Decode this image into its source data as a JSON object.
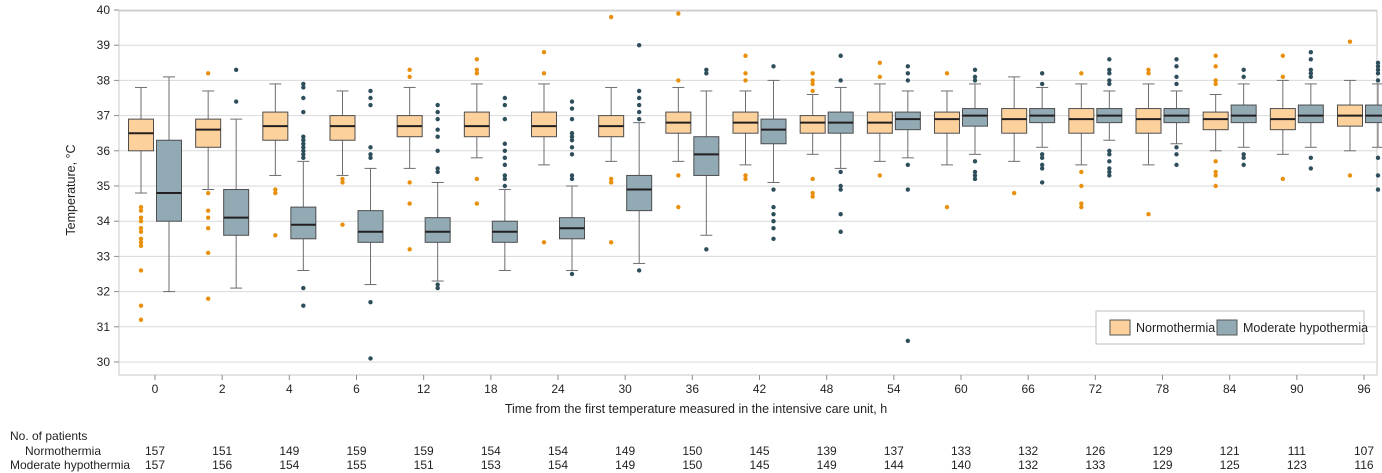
{
  "chart_data": {
    "type": "boxplot",
    "xlabel": "Time from the first temperature measured in the intensive care unit, h",
    "ylabel": "Temperature, °C",
    "ylim": [
      30,
      40
    ],
    "yticks": [
      30,
      31,
      32,
      33,
      34,
      35,
      36,
      37,
      38,
      39,
      40
    ],
    "grid": true,
    "legend_position": "bottom-right",
    "categories": [
      "0",
      "2",
      "4",
      "6",
      "12",
      "18",
      "24",
      "30",
      "36",
      "42",
      "48",
      "54",
      "60",
      "66",
      "72",
      "78",
      "84",
      "90",
      "96"
    ],
    "series": [
      {
        "name": "Normothermia",
        "color": "#fdd19b",
        "outlier_color": "#e8900c",
        "boxes": [
          {
            "whislo": 34.8,
            "q1": 36.0,
            "med": 36.5,
            "q3": 36.9,
            "whishi": 37.8,
            "fliers": [
              34.4,
              34.3,
              34.1,
              34.0,
              33.8,
              33.7,
              33.5,
              33.4,
              33.3,
              32.6,
              31.6,
              31.2
            ]
          },
          {
            "whislo": 34.9,
            "q1": 36.1,
            "med": 36.6,
            "q3": 36.9,
            "whishi": 37.7,
            "fliers": [
              38.2,
              34.8,
              34.3,
              34.1,
              33.8,
              33.1,
              31.8
            ]
          },
          {
            "whislo": 35.3,
            "q1": 36.3,
            "med": 36.7,
            "q3": 37.1,
            "whishi": 37.9,
            "fliers": [
              34.9,
              34.8,
              33.6
            ]
          },
          {
            "whislo": 35.3,
            "q1": 36.3,
            "med": 36.7,
            "q3": 37.0,
            "whishi": 37.7,
            "fliers": [
              35.2,
              35.1,
              33.9
            ]
          },
          {
            "whislo": 35.5,
            "q1": 36.4,
            "med": 36.7,
            "q3": 37.0,
            "whishi": 37.8,
            "fliers": [
              38.3,
              38.1,
              35.1,
              34.5,
              33.2
            ]
          },
          {
            "whislo": 35.8,
            "q1": 36.4,
            "med": 36.7,
            "q3": 37.1,
            "whishi": 37.9,
            "fliers": [
              38.6,
              38.3,
              38.2,
              35.2,
              34.5
            ]
          },
          {
            "whislo": 35.6,
            "q1": 36.4,
            "med": 36.7,
            "q3": 37.1,
            "whishi": 37.9,
            "fliers": [
              38.8,
              38.2,
              33.4
            ]
          },
          {
            "whislo": 35.7,
            "q1": 36.4,
            "med": 36.7,
            "q3": 37.0,
            "whishi": 37.8,
            "fliers": [
              39.8,
              35.2,
              35.1,
              33.4
            ]
          },
          {
            "whislo": 35.7,
            "q1": 36.5,
            "med": 36.8,
            "q3": 37.1,
            "whishi": 37.8,
            "fliers": [
              39.9,
              38.0,
              35.3,
              34.4
            ]
          },
          {
            "whislo": 35.6,
            "q1": 36.5,
            "med": 36.8,
            "q3": 37.1,
            "whishi": 37.7,
            "fliers": [
              38.7,
              38.2,
              38.0,
              35.3,
              35.2
            ]
          },
          {
            "whislo": 35.9,
            "q1": 36.5,
            "med": 36.8,
            "q3": 37.0,
            "whishi": 37.6,
            "fliers": [
              38.2,
              38.0,
              37.9,
              37.7,
              35.2,
              34.8,
              34.7
            ]
          },
          {
            "whislo": 35.7,
            "q1": 36.5,
            "med": 36.8,
            "q3": 37.1,
            "whishi": 37.9,
            "fliers": [
              38.5,
              38.1,
              35.3
            ]
          },
          {
            "whislo": 35.6,
            "q1": 36.5,
            "med": 36.9,
            "q3": 37.1,
            "whishi": 37.7,
            "fliers": [
              38.2,
              34.4
            ]
          },
          {
            "whislo": 35.7,
            "q1": 36.5,
            "med": 36.9,
            "q3": 37.2,
            "whishi": 38.1,
            "fliers": [
              34.8
            ]
          },
          {
            "whislo": 35.6,
            "q1": 36.5,
            "med": 36.9,
            "q3": 37.2,
            "whishi": 37.9,
            "fliers": [
              38.2,
              35.4,
              35.0,
              34.5,
              34.4
            ]
          },
          {
            "whislo": 35.6,
            "q1": 36.5,
            "med": 36.9,
            "q3": 37.2,
            "whishi": 37.9,
            "fliers": [
              38.3,
              38.2,
              34.2
            ]
          },
          {
            "whislo": 36.0,
            "q1": 36.6,
            "med": 36.9,
            "q3": 37.1,
            "whishi": 37.6,
            "fliers": [
              38.7,
              38.4,
              38.0,
              37.9,
              35.7,
              35.4,
              35.3,
              35.0
            ]
          },
          {
            "whislo": 35.9,
            "q1": 36.6,
            "med": 36.9,
            "q3": 37.2,
            "whishi": 38.0,
            "fliers": [
              38.7,
              38.1,
              35.2
            ]
          },
          {
            "whislo": 36.0,
            "q1": 36.7,
            "med": 37.0,
            "q3": 37.3,
            "whishi": 38.0,
            "fliers": [
              39.1,
              35.3
            ]
          }
        ]
      },
      {
        "name": "Moderate hypothermia",
        "color": "#91aab4",
        "outlier_color": "#2e4e5b",
        "boxes": [
          {
            "whislo": 32.0,
            "q1": 34.0,
            "med": 34.8,
            "q3": 36.3,
            "whishi": 38.1,
            "fliers": []
          },
          {
            "whislo": 32.1,
            "q1": 33.6,
            "med": 34.1,
            "q3": 34.9,
            "whishi": 36.9,
            "fliers": [
              38.3,
              37.4
            ]
          },
          {
            "whislo": 32.6,
            "q1": 33.5,
            "med": 33.9,
            "q3": 34.4,
            "whishi": 35.7,
            "fliers": [
              37.9,
              37.8,
              37.5,
              37.1,
              36.4,
              36.3,
              36.2,
              36.1,
              36.0,
              35.9,
              35.8,
              32.1,
              31.6
            ]
          },
          {
            "whislo": 32.2,
            "q1": 33.4,
            "med": 33.7,
            "q3": 34.3,
            "whishi": 35.5,
            "fliers": [
              37.7,
              37.5,
              37.3,
              36.1,
              35.9,
              35.8,
              31.7,
              30.1
            ]
          },
          {
            "whislo": 32.3,
            "q1": 33.4,
            "med": 33.7,
            "q3": 34.1,
            "whishi": 35.1,
            "fliers": [
              37.3,
              37.1,
              36.9,
              36.6,
              36.4,
              36.0,
              35.5,
              35.4,
              32.2,
              32.1
            ]
          },
          {
            "whislo": 32.6,
            "q1": 33.4,
            "med": 33.7,
            "q3": 34.0,
            "whishi": 34.9,
            "fliers": [
              37.5,
              37.3,
              36.9,
              36.2,
              36.0,
              35.8,
              35.6,
              35.3,
              35.2,
              35.0
            ]
          },
          {
            "whislo": 32.6,
            "q1": 33.5,
            "med": 33.8,
            "q3": 34.1,
            "whishi": 35.0,
            "fliers": [
              37.4,
              37.2,
              36.9,
              36.5,
              36.4,
              36.3,
              36.1,
              35.9,
              35.3,
              35.2,
              32.5
            ]
          },
          {
            "whislo": 32.8,
            "q1": 34.3,
            "med": 34.9,
            "q3": 35.3,
            "whishi": 36.8,
            "fliers": [
              39.0,
              37.7,
              37.5,
              37.3,
              37.1,
              36.9,
              32.6
            ]
          },
          {
            "whislo": 33.6,
            "q1": 35.3,
            "med": 35.9,
            "q3": 36.4,
            "whishi": 37.7,
            "fliers": [
              38.3,
              38.2,
              33.2
            ]
          },
          {
            "whislo": 35.1,
            "q1": 36.2,
            "med": 36.6,
            "q3": 36.9,
            "whishi": 38.0,
            "fliers": [
              38.4,
              34.9,
              34.4,
              34.2,
              34.0,
              33.8,
              33.5
            ]
          },
          {
            "whislo": 35.5,
            "q1": 36.5,
            "med": 36.8,
            "q3": 37.1,
            "whishi": 37.8,
            "fliers": [
              38.7,
              38.0,
              35.4,
              35.0,
              34.9,
              34.2,
              33.7
            ]
          },
          {
            "whislo": 35.8,
            "q1": 36.6,
            "med": 36.9,
            "q3": 37.1,
            "whishi": 37.7,
            "fliers": [
              38.4,
              38.2,
              38.0,
              35.6,
              34.9,
              30.6
            ]
          },
          {
            "whislo": 35.9,
            "q1": 36.7,
            "med": 37.0,
            "q3": 37.2,
            "whishi": 37.9,
            "fliers": [
              38.3,
              38.1,
              38.0,
              35.7,
              35.4,
              35.3,
              35.2
            ]
          },
          {
            "whislo": 36.1,
            "q1": 36.8,
            "med": 37.0,
            "q3": 37.2,
            "whishi": 37.8,
            "fliers": [
              38.2,
              37.9,
              35.9,
              35.8,
              35.6,
              35.5,
              35.1
            ]
          },
          {
            "whislo": 36.3,
            "q1": 36.8,
            "med": 37.0,
            "q3": 37.2,
            "whishi": 37.7,
            "fliers": [
              38.6,
              38.3,
              38.2,
              38.0,
              37.9,
              36.0,
              35.9,
              35.7,
              35.5,
              35.4,
              35.3
            ]
          },
          {
            "whislo": 36.2,
            "q1": 36.8,
            "med": 37.0,
            "q3": 37.2,
            "whishi": 37.7,
            "fliers": [
              38.6,
              38.4,
              38.1,
              37.9,
              36.1,
              35.9,
              35.6
            ]
          },
          {
            "whislo": 36.1,
            "q1": 36.8,
            "med": 37.0,
            "q3": 37.3,
            "whishi": 37.9,
            "fliers": [
              38.3,
              38.1,
              35.9,
              35.8,
              35.6
            ]
          },
          {
            "whislo": 36.1,
            "q1": 36.8,
            "med": 37.0,
            "q3": 37.3,
            "whishi": 37.9,
            "fliers": [
              38.8,
              38.6,
              38.3,
              38.2,
              38.1,
              35.8,
              35.5
            ]
          },
          {
            "whislo": 36.1,
            "q1": 36.8,
            "med": 37.0,
            "q3": 37.3,
            "whishi": 37.9,
            "fliers": [
              38.5,
              38.4,
              38.3,
              38.2,
              38.0,
              35.8,
              35.3,
              34.9
            ]
          }
        ]
      }
    ],
    "legend": [
      "Normothermia",
      "Moderate hypothermia"
    ]
  },
  "patients": {
    "title": "No. of patients",
    "rows": [
      {
        "label": "Normothermia",
        "values": [
          "157",
          "151",
          "149",
          "159",
          "159",
          "154",
          "154",
          "149",
          "150",
          "145",
          "139",
          "137",
          "133",
          "132",
          "126",
          "129",
          "121",
          "111",
          "107"
        ]
      },
      {
        "label": "Moderate hypothermia",
        "values": [
          "157",
          "156",
          "154",
          "155",
          "151",
          "153",
          "154",
          "149",
          "150",
          "145",
          "149",
          "144",
          "140",
          "132",
          "133",
          "129",
          "125",
          "123",
          "116"
        ]
      }
    ]
  }
}
